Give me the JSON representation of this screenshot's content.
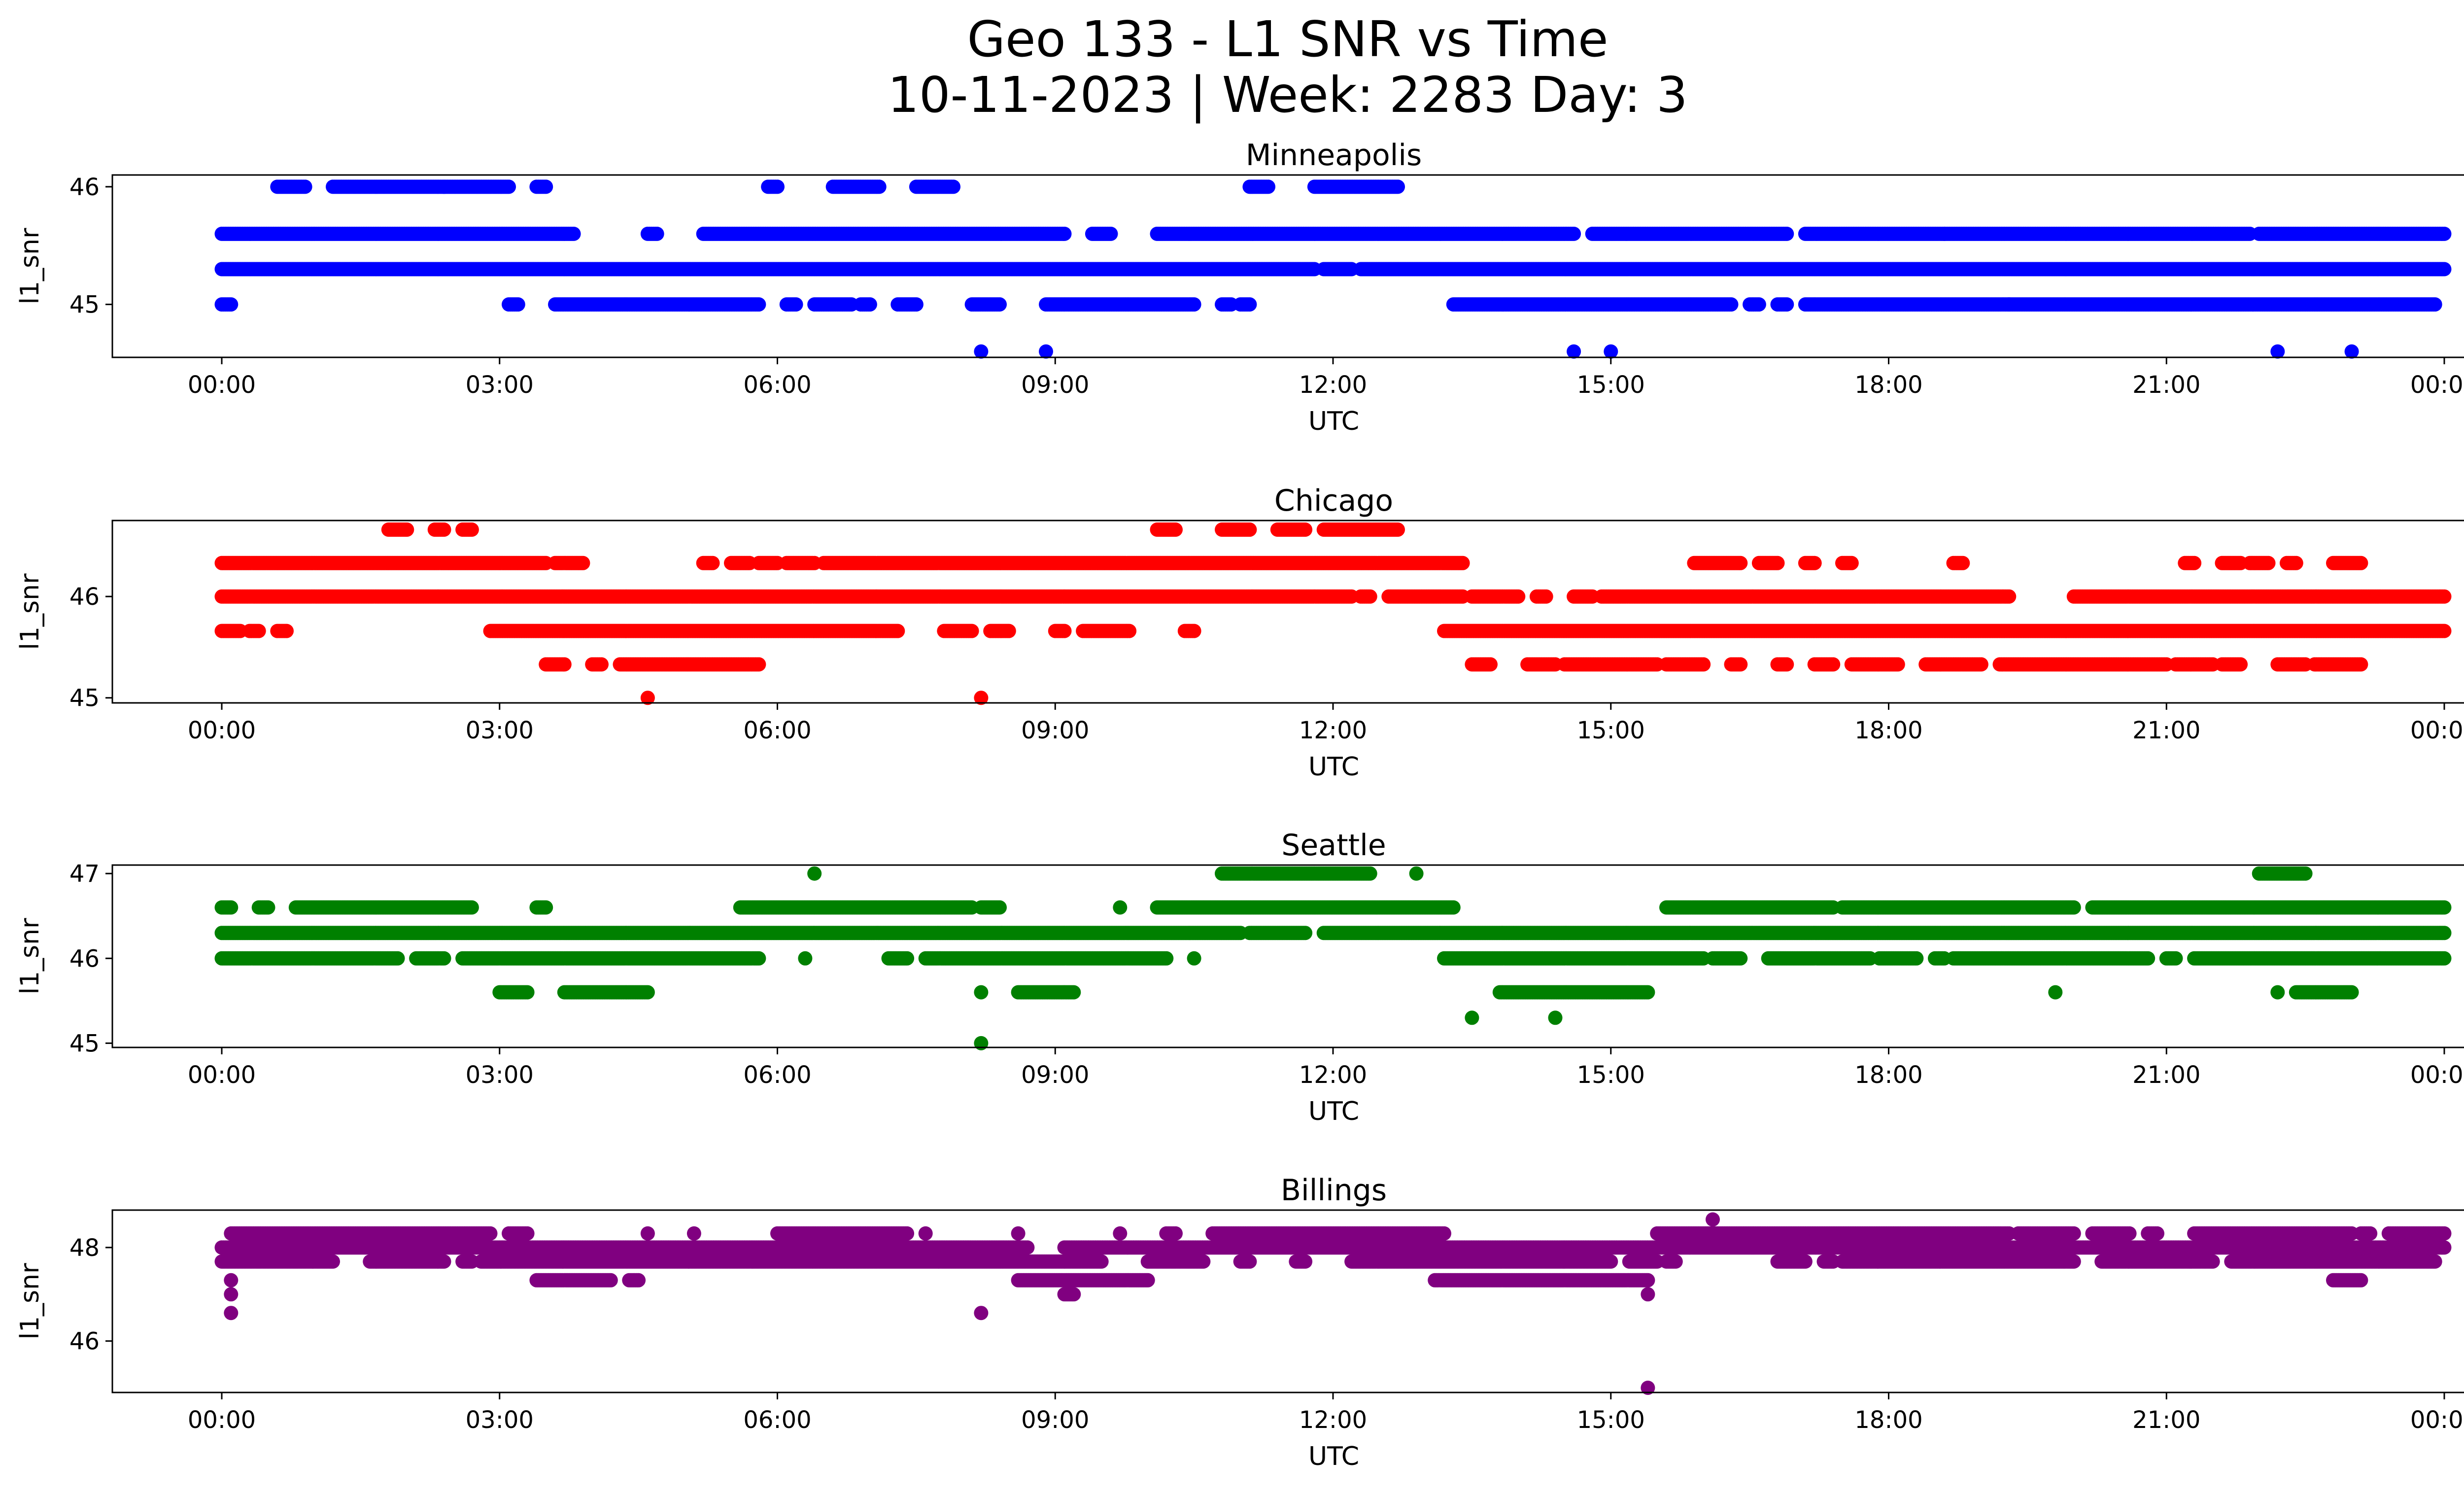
{
  "figure": {
    "title_line1": "Geo 133 - L1 SNR vs Time",
    "title_line2": "10-11-2023 | Week: 2283 Day: 3"
  },
  "chart_data": [
    {
      "type": "scatter",
      "title": "Minneapolis",
      "xlabel": "UTC",
      "ylabel": "l1_snr",
      "color": "#0000ff",
      "xlim": [
        "00:00",
        "24:00"
      ],
      "x_ticks": [
        "00:00",
        "03:00",
        "06:00",
        "09:00",
        "12:00",
        "15:00",
        "18:00",
        "21:00",
        "00:00"
      ],
      "ylim": [
        44.55,
        46.1
      ],
      "y_ticks": [
        45,
        46
      ],
      "grid": false,
      "series": [
        {
          "y": 46,
          "segments": [
            [
              0.6,
              0.9
            ],
            [
              1.2,
              2.4
            ],
            [
              2.4,
              3.1
            ],
            [
              3.4,
              3.5
            ],
            [
              5.9,
              6.0
            ],
            [
              6.6,
              7.1
            ],
            [
              7.5,
              7.9
            ],
            [
              11.1,
              11.3
            ],
            [
              11.8,
              12.7
            ]
          ]
        },
        {
          "y": 45.6,
          "segments": [
            [
              0,
              3.8
            ],
            [
              4.6,
              4.7
            ],
            [
              5.2,
              9.1
            ],
            [
              9.4,
              9.6
            ],
            [
              10.1,
              14.6
            ],
            [
              14.8,
              16.9
            ],
            [
              17.1,
              18.6
            ],
            [
              18.6,
              21.9
            ],
            [
              22.0,
              24.0
            ]
          ]
        },
        {
          "y": 45.3,
          "segments": [
            [
              0,
              11.8
            ],
            [
              11.9,
              12.2
            ],
            [
              12.3,
              24.0
            ]
          ]
        },
        {
          "y": 45,
          "segments": [
            [
              0,
              0.1
            ],
            [
              3.1,
              3.2
            ],
            [
              3.6,
              5.8
            ],
            [
              6.1,
              6.2
            ],
            [
              6.4,
              6.8
            ],
            [
              6.9,
              7.0
            ],
            [
              7.3,
              7.5
            ],
            [
              8.1,
              8.4
            ],
            [
              8.9,
              10.5
            ],
            [
              10.8,
              10.9
            ],
            [
              11.0,
              11.1
            ],
            [
              13.3,
              16.3
            ],
            [
              16.5,
              16.6
            ],
            [
              16.8,
              16.9
            ],
            [
              17.1,
              19.3
            ],
            [
              19.3,
              23.9
            ]
          ]
        },
        {
          "y": 44.6,
          "segments": [
            [
              8.2,
              8.2
            ],
            [
              8.9,
              8.9
            ],
            [
              14.6,
              14.6
            ],
            [
              15.0,
              15.0
            ],
            [
              22.2,
              22.2
            ],
            [
              23.0,
              23.0
            ]
          ]
        }
      ]
    },
    {
      "type": "scatter",
      "title": "Chicago",
      "xlabel": "UTC",
      "ylabel": "l1_snr",
      "color": "#ff0000",
      "xlim": [
        "00:00",
        "24:00"
      ],
      "x_ticks": [
        "00:00",
        "03:00",
        "06:00",
        "09:00",
        "12:00",
        "15:00",
        "18:00",
        "21:00",
        "00:00"
      ],
      "ylim": [
        44.95,
        46.75
      ],
      "y_ticks": [
        45,
        46
      ],
      "grid": false,
      "series": [
        {
          "y": 46.66,
          "segments": [
            [
              1.8,
              2.0
            ],
            [
              2.3,
              2.4
            ],
            [
              2.6,
              2.7
            ],
            [
              10.1,
              10.3
            ],
            [
              10.8,
              11.1
            ],
            [
              11.4,
              11.7
            ],
            [
              11.9,
              12.7
            ]
          ]
        },
        {
          "y": 46.33,
          "segments": [
            [
              0,
              3.5
            ],
            [
              3.6,
              3.9
            ],
            [
              5.2,
              5.3
            ],
            [
              5.5,
              5.7
            ],
            [
              5.8,
              6.0
            ],
            [
              6.1,
              6.4
            ],
            [
              6.5,
              13.4
            ],
            [
              15.9,
              16.4
            ],
            [
              16.6,
              16.8
            ],
            [
              17.1,
              17.2
            ],
            [
              17.5,
              17.6
            ],
            [
              18.7,
              18.8
            ],
            [
              21.2,
              21.3
            ],
            [
              21.6,
              21.8
            ],
            [
              21.9,
              22.1
            ],
            [
              22.3,
              22.4
            ],
            [
              22.8,
              23.1
            ]
          ]
        },
        {
          "y": 46,
          "segments": [
            [
              0,
              12.2
            ],
            [
              12.3,
              12.4
            ],
            [
              12.6,
              13.4
            ],
            [
              13.5,
              14.0
            ],
            [
              14.2,
              14.3
            ],
            [
              14.6,
              14.8
            ],
            [
              14.9,
              19.3
            ],
            [
              20.0,
              24.0
            ]
          ]
        },
        {
          "y": 45.66,
          "segments": [
            [
              0,
              0.2
            ],
            [
              0.3,
              0.4
            ],
            [
              0.6,
              0.7
            ],
            [
              2.9,
              7.3
            ],
            [
              7.8,
              8.1
            ],
            [
              8.3,
              8.5
            ],
            [
              9.0,
              9.1
            ],
            [
              9.3,
              9.8
            ],
            [
              10.4,
              10.5
            ],
            [
              13.2,
              24.0
            ]
          ]
        },
        {
          "y": 45.33,
          "segments": [
            [
              3.5,
              3.7
            ],
            [
              4.0,
              4.1
            ],
            [
              4.3,
              5.8
            ],
            [
              13.5,
              13.7
            ],
            [
              14.1,
              14.4
            ],
            [
              14.5,
              15.5
            ],
            [
              15.6,
              16.0
            ],
            [
              16.3,
              16.4
            ],
            [
              16.8,
              16.9
            ],
            [
              17.2,
              17.4
            ],
            [
              17.6,
              18.1
            ],
            [
              18.4,
              19.0
            ],
            [
              19.2,
              21.0
            ],
            [
              21.1,
              21.5
            ],
            [
              21.6,
              21.8
            ],
            [
              22.2,
              22.5
            ],
            [
              22.6,
              23.1
            ]
          ]
        },
        {
          "y": 45,
          "segments": [
            [
              4.6,
              4.6
            ],
            [
              8.2,
              8.2
            ]
          ]
        }
      ]
    },
    {
      "type": "scatter",
      "title": "Seattle",
      "xlabel": "UTC",
      "ylabel": "l1_snr",
      "color": "#008000",
      "xlim": [
        "00:00",
        "24:00"
      ],
      "x_ticks": [
        "00:00",
        "03:00",
        "06:00",
        "09:00",
        "12:00",
        "15:00",
        "18:00",
        "21:00",
        "00:00"
      ],
      "ylim": [
        44.95,
        47.1
      ],
      "y_ticks": [
        45,
        46,
        47
      ],
      "grid": false,
      "series": [
        {
          "y": 47,
          "segments": [
            [
              6.4,
              6.4
            ],
            [
              10.8,
              12.4
            ],
            [
              12.9,
              12.9
            ],
            [
              22.0,
              22.5
            ]
          ]
        },
        {
          "y": 46.6,
          "segments": [
            [
              0,
              0.1
            ],
            [
              0.4,
              0.5
            ],
            [
              0.8,
              2.7
            ],
            [
              3.4,
              3.5
            ],
            [
              5.6,
              8.1
            ],
            [
              8.2,
              8.4
            ],
            [
              9.7,
              9.7
            ],
            [
              10.1,
              13.3
            ],
            [
              15.6,
              17.4
            ],
            [
              17.5,
              20.0
            ],
            [
              20.2,
              24.0
            ]
          ]
        },
        {
          "y": 46.3,
          "segments": [
            [
              0,
              11.0
            ],
            [
              11.1,
              11.7
            ],
            [
              11.9,
              24.0
            ]
          ]
        },
        {
          "y": 46,
          "segments": [
            [
              0,
              1.9
            ],
            [
              2.1,
              2.4
            ],
            [
              2.6,
              5.8
            ],
            [
              6.3,
              6.3
            ],
            [
              7.2,
              7.4
            ],
            [
              7.6,
              10.2
            ],
            [
              10.5,
              10.5
            ],
            [
              13.2,
              16.0
            ],
            [
              16.1,
              16.4
            ],
            [
              16.7,
              17.8
            ],
            [
              17.9,
              18.3
            ],
            [
              18.5,
              18.6
            ],
            [
              18.7,
              20.8
            ],
            [
              21.0,
              21.1
            ],
            [
              21.3,
              24.0
            ]
          ]
        },
        {
          "y": 45.6,
          "segments": [
            [
              3.0,
              3.3
            ],
            [
              3.7,
              4.6
            ],
            [
              8.2,
              8.2
            ],
            [
              8.6,
              9.2
            ],
            [
              13.8,
              15.4
            ],
            [
              19.8,
              19.8
            ],
            [
              22.2,
              22.2
            ],
            [
              22.4,
              23.0
            ]
          ]
        },
        {
          "y": 45.3,
          "segments": [
            [
              13.5,
              13.5
            ],
            [
              14.4,
              14.4
            ]
          ]
        },
        {
          "y": 45,
          "segments": [
            [
              8.2,
              8.2
            ]
          ]
        }
      ]
    },
    {
      "type": "scatter",
      "title": "Billings",
      "xlabel": "UTC",
      "ylabel": "l1_snr",
      "color": "#800080",
      "xlim": [
        "00:00",
        "24:00"
      ],
      "x_ticks": [
        "00:00",
        "03:00",
        "06:00",
        "09:00",
        "12:00",
        "15:00",
        "18:00",
        "21:00",
        "00:00"
      ],
      "ylim": [
        44.9,
        48.8
      ],
      "y_ticks": [
        46,
        48
      ],
      "grid": false,
      "series": [
        {
          "y": 48.6,
          "segments": [
            [
              16.1,
              16.1
            ]
          ]
        },
        {
          "y": 48.3,
          "segments": [
            [
              0.1,
              2.9
            ],
            [
              3.1,
              3.3
            ],
            [
              4.6,
              4.6
            ],
            [
              5.1,
              5.1
            ],
            [
              6.0,
              7.4
            ],
            [
              7.6,
              7.6
            ],
            [
              8.6,
              8.6
            ],
            [
              9.7,
              9.7
            ],
            [
              10.2,
              10.3
            ],
            [
              10.7,
              13.2
            ],
            [
              15.5,
              19.3
            ],
            [
              19.4,
              20.0
            ],
            [
              20.2,
              20.6
            ],
            [
              20.8,
              20.9
            ],
            [
              21.3,
              23.0
            ],
            [
              23.1,
              23.2
            ],
            [
              23.4,
              24.0
            ]
          ]
        },
        {
          "y": 48,
          "segments": [
            [
              0,
              8.7
            ],
            [
              9.1,
              24.0
            ]
          ]
        },
        {
          "y": 47.7,
          "segments": [
            [
              0,
              1.2
            ],
            [
              1.6,
              2.4
            ],
            [
              2.6,
              2.7
            ],
            [
              2.8,
              9.5
            ],
            [
              10.0,
              10.6
            ],
            [
              11.0,
              11.1
            ],
            [
              11.6,
              11.7
            ],
            [
              12.2,
              15.0
            ],
            [
              15.2,
              15.5
            ],
            [
              15.6,
              15.7
            ],
            [
              16.8,
              17.1
            ],
            [
              17.3,
              17.4
            ],
            [
              17.5,
              20.0
            ],
            [
              20.3,
              21.5
            ],
            [
              21.7,
              23.9
            ]
          ]
        },
        {
          "y": 47.3,
          "segments": [
            [
              0.1,
              0.1
            ],
            [
              3.4,
              4.2
            ],
            [
              4.4,
              4.5
            ],
            [
              8.6,
              10.0
            ],
            [
              13.1,
              15.4
            ],
            [
              22.8,
              23.1
            ]
          ]
        },
        {
          "y": 47,
          "segments": [
            [
              0.1,
              0.1
            ],
            [
              9.1,
              9.2
            ],
            [
              15.4,
              15.4
            ]
          ]
        },
        {
          "y": 46.6,
          "segments": [
            [
              0.1,
              0.1
            ],
            [
              8.2,
              8.2
            ]
          ]
        },
        {
          "y": 45,
          "segments": [
            [
              15.4,
              15.4
            ]
          ]
        }
      ]
    }
  ]
}
